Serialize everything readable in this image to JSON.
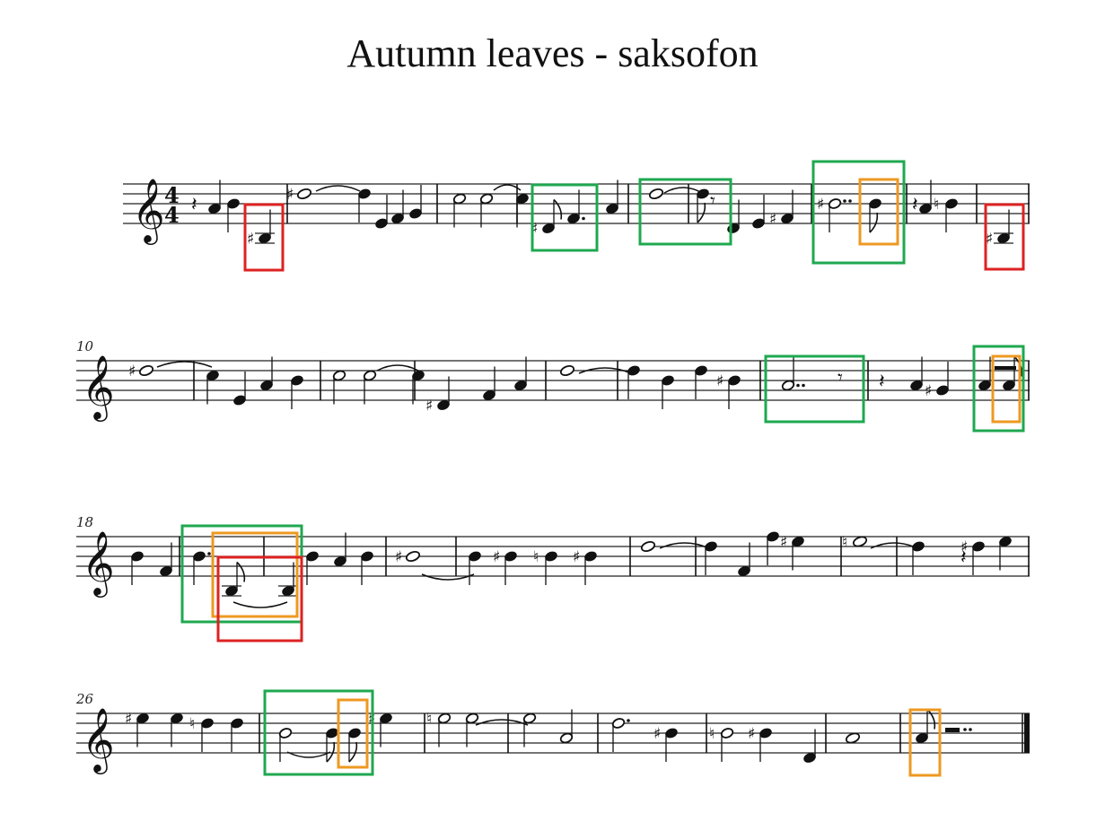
{
  "title": "Autumn leaves - saksofon",
  "time_signature": {
    "numerator": "4",
    "denominator": "4"
  },
  "clef": "treble-clef",
  "systems": [
    {
      "first_measure": "",
      "measures": 9
    },
    {
      "first_measure": "10",
      "measures": 8
    },
    {
      "first_measure": "18",
      "measures": 8
    },
    {
      "first_measure": "26",
      "measures": 8
    }
  ],
  "highlight_colors": {
    "red": "#dd2222",
    "green": "#1fa850",
    "orange": "#ee9922"
  },
  "annotations": [
    {
      "color": "red",
      "system": 1,
      "measure": 1
    },
    {
      "color": "green",
      "system": 1,
      "measure": 4
    },
    {
      "color": "green",
      "system": 1,
      "measure": 5
    },
    {
      "color": "green",
      "system": 1,
      "measure": 6
    },
    {
      "color": "orange",
      "system": 1,
      "measure": 6
    },
    {
      "color": "red",
      "system": 1,
      "measure": 9
    },
    {
      "color": "green",
      "system": 2,
      "measure": 15
    },
    {
      "color": "green",
      "system": 2,
      "measure": 17
    },
    {
      "color": "orange",
      "system": 2,
      "measure": 17
    },
    {
      "color": "green",
      "system": 3,
      "measure": 19
    },
    {
      "color": "orange",
      "system": 3,
      "measure": 19
    },
    {
      "color": "red",
      "system": 3,
      "measure": 19
    },
    {
      "color": "green",
      "system": 4,
      "measure": 27
    },
    {
      "color": "orange",
      "system": 4,
      "measure": 27
    },
    {
      "color": "orange",
      "system": 4,
      "measure": 33
    }
  ]
}
